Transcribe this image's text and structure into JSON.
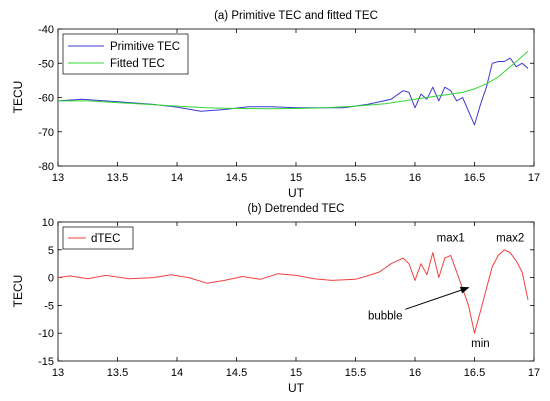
{
  "chart_data": [
    {
      "type": "line",
      "title": "(a) Primitive TEC and fitted TEC",
      "xlabel": "UT",
      "ylabel": "TECU",
      "xlim": [
        13,
        17
      ],
      "ylim": [
        -80,
        -40
      ],
      "xticks": [
        "13",
        "13.5",
        "14",
        "14.5",
        "15",
        "15.5",
        "16",
        "16.5",
        "17"
      ],
      "yticks": [
        "-40",
        "-50",
        "-60",
        "-70",
        "-80"
      ],
      "grid": false,
      "legend_position": "top-left",
      "series": [
        {
          "name": "Primitive TEC",
          "color": "#3b3bd0",
          "x": [
            13.0,
            13.2,
            13.4,
            13.6,
            13.8,
            14.0,
            14.2,
            14.4,
            14.6,
            14.8,
            15.0,
            15.2,
            15.4,
            15.6,
            15.8,
            15.9,
            15.95,
            16.0,
            16.05,
            16.1,
            16.15,
            16.2,
            16.25,
            16.3,
            16.35,
            16.4,
            16.45,
            16.5,
            16.55,
            16.6,
            16.65,
            16.7,
            16.75,
            16.8,
            16.85,
            16.9,
            16.95
          ],
          "values": [
            -61,
            -60.5,
            -61,
            -61.5,
            -62,
            -62.8,
            -64,
            -63.5,
            -62.7,
            -62.7,
            -63,
            -63,
            -63,
            -62,
            -60.5,
            -58,
            -58.5,
            -63,
            -59,
            -60.5,
            -57,
            -61,
            -57,
            -58,
            -61,
            -60,
            -64,
            -68,
            -62,
            -57,
            -50,
            -49.5,
            -49.5,
            -48.5,
            -51,
            -50,
            -51.5
          ]
        },
        {
          "name": "Fitted TEC",
          "color": "#33d633",
          "x": [
            13.0,
            13.25,
            13.5,
            13.75,
            14.0,
            14.25,
            14.5,
            14.75,
            15.0,
            15.25,
            15.5,
            15.75,
            16.0,
            16.1,
            16.2,
            16.3,
            16.4,
            16.5,
            16.6,
            16.7,
            16.8,
            16.9,
            16.95
          ],
          "values": [
            -61,
            -61,
            -61.5,
            -62,
            -62.5,
            -63,
            -63.2,
            -63.3,
            -63.2,
            -63,
            -62.5,
            -61.8,
            -60.5,
            -60,
            -59.5,
            -59,
            -58.5,
            -57.5,
            -56,
            -54,
            -51,
            -48,
            -46.5
          ]
        }
      ]
    },
    {
      "type": "line",
      "title": "(b) Detrended TEC",
      "xlabel": "UT",
      "ylabel": "TECU",
      "xlim": [
        13,
        17
      ],
      "ylim": [
        -15,
        10
      ],
      "xticks": [
        "13",
        "13.5",
        "14",
        "14.5",
        "15",
        "15.5",
        "16",
        "16.5",
        "17"
      ],
      "yticks": [
        "10",
        "5",
        "0",
        "-5",
        "-10",
        "-15"
      ],
      "grid": false,
      "legend_position": "top-left",
      "series": [
        {
          "name": "dTEC",
          "color": "#f04040",
          "x": [
            13.0,
            13.1,
            13.25,
            13.4,
            13.6,
            13.8,
            13.95,
            14.1,
            14.25,
            14.4,
            14.55,
            14.7,
            14.85,
            15.0,
            15.15,
            15.3,
            15.5,
            15.6,
            15.7,
            15.8,
            15.85,
            15.9,
            15.95,
            16.0,
            16.05,
            16.1,
            16.15,
            16.2,
            16.25,
            16.3,
            16.35,
            16.4,
            16.45,
            16.5,
            16.55,
            16.6,
            16.65,
            16.7,
            16.75,
            16.8,
            16.85,
            16.9,
            16.95
          ],
          "values": [
            0,
            0.3,
            -0.2,
            0.4,
            -0.2,
            0,
            0.5,
            0,
            -1,
            -0.5,
            0.2,
            -0.3,
            0.7,
            0.4,
            -0.2,
            -0.5,
            -0.3,
            0.3,
            1,
            2.5,
            3,
            3.5,
            2.5,
            -0.5,
            2.5,
            0.5,
            4.5,
            0,
            3.5,
            4,
            1,
            -2,
            -5,
            -10,
            -6,
            -2,
            2,
            4,
            5,
            4.5,
            3,
            1,
            -4
          ]
        }
      ],
      "annotations": [
        {
          "text": "max1",
          "x": 16.3,
          "y": 6.5
        },
        {
          "text": "max2",
          "x": 16.8,
          "y": 6.5
        },
        {
          "text": "min",
          "x": 16.55,
          "y": -12.5
        },
        {
          "text": "bubble",
          "x": 15.75,
          "y": -7.5,
          "arrow_to": [
            16.45,
            -1.8
          ]
        }
      ]
    }
  ]
}
